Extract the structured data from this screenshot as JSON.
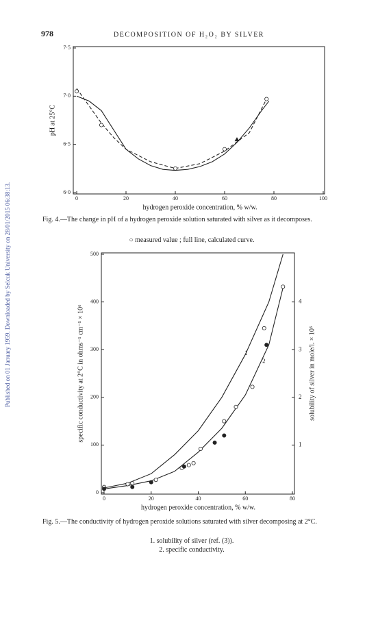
{
  "header": {
    "page_number": "978",
    "running_title": "DECOMPOSITION OF H₂O₂ BY SILVER"
  },
  "watermark": "Published on 01 January 1959. Downloaded by Selcuk University on 28/01/2015 06:38:13.",
  "chart_data": [
    {
      "type": "line",
      "x_label": "hydrogen peroxide concentration, % w/w.",
      "y_label": "pH at 25°C",
      "caption": "Fig. 4.—The change in pH of a hydrogen peroxide solution saturated with silver as it decomposes.",
      "caption_notes": [
        "○ measured value ; full line, calculated curve."
      ],
      "xlim": [
        0,
        100
      ],
      "xticks": [
        0,
        20,
        40,
        60,
        80,
        100
      ],
      "ylim": [
        6,
        7.5
      ],
      "yticks": [
        {
          "value": 6,
          "label": "6·0"
        },
        {
          "value": 6.5,
          "label": "6·5"
        },
        {
          "value": 7,
          "label": "7·0"
        },
        {
          "value": 7.5,
          "label": "7·5"
        }
      ],
      "annotations": [],
      "series": [
        {
          "style": "solid",
          "color": "#222",
          "x": [
            0,
            5,
            10,
            15,
            20,
            25,
            30,
            35,
            40,
            45,
            50,
            55,
            60,
            65,
            70,
            75,
            78
          ],
          "values": [
            7.0,
            6.95,
            6.85,
            6.65,
            6.45,
            6.35,
            6.28,
            6.24,
            6.23,
            6.24,
            6.27,
            6.32,
            6.4,
            6.52,
            6.67,
            6.85,
            6.95
          ]
        },
        {
          "style": "dashed",
          "color": "#222",
          "x": [
            0,
            5,
            10,
            15,
            20,
            30,
            40,
            50,
            60,
            70,
            77
          ],
          "values": [
            7.08,
            6.9,
            6.72,
            6.57,
            6.45,
            6.32,
            6.25,
            6.3,
            6.43,
            6.62,
            6.97
          ]
        },
        {
          "style": "open-circle",
          "color": "#222",
          "x": [
            0,
            10,
            40,
            60,
            77
          ],
          "values": [
            7.05,
            6.7,
            6.25,
            6.45,
            6.97
          ]
        },
        {
          "style": "filled-triangle",
          "color": "#222",
          "x": [
            65
          ],
          "values": [
            6.55
          ]
        }
      ]
    },
    {
      "type": "line",
      "x_label": "hydrogen peroxide concentration, % w/w.",
      "y_label": "specific conductivity at 2°C in ohms⁻¹ cm⁻¹ × 10⁶",
      "y2_label": "solubility of silver in mole/l. × 10³",
      "caption": "Fig. 5.—The conductivity of hydrogen peroxide solutions saturated with silver decomposing at 2°C.",
      "caption_notes": [
        "1. solubility of silver (ref. (3)).",
        "2. specific conductivity."
      ],
      "xlim": [
        0,
        80
      ],
      "xticks": [
        0,
        20,
        40,
        60,
        80
      ],
      "ylim": [
        0,
        500
      ],
      "yticks": [
        0,
        100,
        200,
        300,
        400,
        500
      ],
      "y2lim": [
        0,
        5
      ],
      "y2ticks": [
        1,
        2,
        3,
        4
      ],
      "annotations": [
        "1",
        "2"
      ],
      "series": [
        {
          "style": "solid",
          "color": "#222",
          "axis": "y2",
          "x": [
            0,
            10,
            20,
            30,
            40,
            50,
            60,
            70,
            76
          ],
          "values": [
            0.1,
            0.2,
            0.4,
            0.8,
            1.3,
            2.0,
            2.9,
            4.0,
            5.0
          ]
        },
        {
          "style": "solid",
          "color": "#222",
          "x": [
            0,
            10,
            20,
            30,
            40,
            50,
            60,
            70,
            76
          ],
          "values": [
            8,
            15,
            25,
            45,
            85,
            135,
            205,
            310,
            430
          ]
        },
        {
          "style": "open-circle",
          "color": "#222",
          "x": [
            0,
            10,
            12,
            22,
            33,
            36,
            38,
            41,
            51,
            56,
            63,
            68,
            76
          ],
          "values": [
            12,
            18,
            20,
            27,
            52,
            58,
            62,
            92,
            150,
            180,
            222,
            345,
            432
          ]
        },
        {
          "style": "filled-circle",
          "color": "#222",
          "x": [
            0,
            12,
            20,
            34,
            47,
            51,
            69
          ],
          "values": [
            8,
            12,
            22,
            55,
            105,
            120,
            310
          ]
        }
      ]
    }
  ]
}
